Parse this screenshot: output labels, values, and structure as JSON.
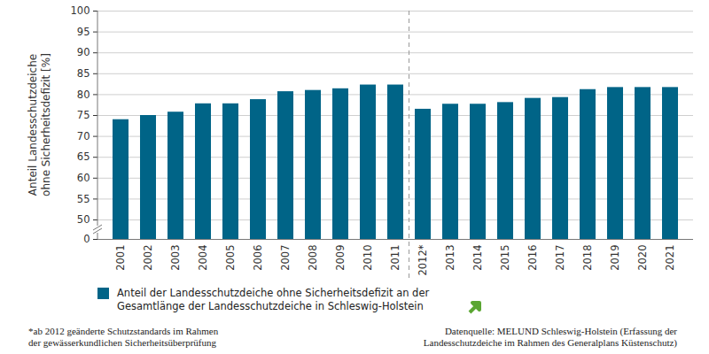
{
  "chart_data": {
    "type": "bar",
    "y_label": "Anteil Landesschutzdeiche\nohne Sicherheitsdefizit [%]",
    "categories": [
      "2001",
      "2002",
      "2003",
      "2004",
      "2005",
      "2006",
      "2007",
      "2008",
      "2009",
      "2010",
      "2011",
      "2012*",
      "2013",
      "2014",
      "2015",
      "2016",
      "2017",
      "2018",
      "2019",
      "2020",
      "2021"
    ],
    "series": [
      {
        "name": "Anteil der Landesschutzdeiche ohne Sicherheitsdefizit an der Gesamtlänge der Landesschutzdeiche in Schleswig-Holstein",
        "color": "#006487",
        "values": [
          74,
          75,
          75.8,
          77.8,
          77.8,
          78.8,
          80.7,
          81,
          81.4,
          82.3,
          82.3,
          76.5,
          77.7,
          77.7,
          78.1,
          79.1,
          79.3,
          81.2,
          81.7,
          81.7,
          81.7
        ]
      }
    ],
    "ylim": [
      0,
      100
    ],
    "yticks": [
      0,
      50,
      55,
      60,
      65,
      70,
      75,
      80,
      85,
      90,
      95,
      100
    ],
    "grid": true,
    "annotations": [
      "*ab 2012 geänderte Schutzstandards im Rahmen\nder gewässerkundlichen Sicherheitsüberprüfung",
      "Datenquelle: MELUND Schleswig-Holstein (Erfassung der\nLandesschutzdeiche im Rahmen des Generalplans Küstenschutz)"
    ]
  }
}
